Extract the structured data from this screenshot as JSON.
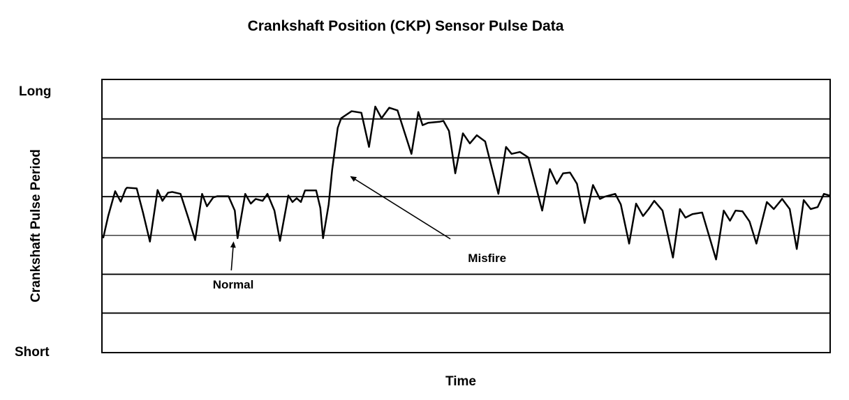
{
  "page": {
    "background": "#ffffff",
    "foreground": "#000000"
  },
  "chart_data": {
    "type": "line",
    "title": "Crankshaft Position (CKP) Sensor Pulse Data",
    "xlabel": "Time",
    "ylabel": "Crankshaft Pulse Period",
    "y_axis_top_label": "Long",
    "y_axis_bottom_label": "Short",
    "ylim": [
      0,
      7
    ],
    "xlim": [
      0,
      100
    ],
    "gridlines_y": [
      1,
      2,
      3,
      4,
      5,
      6
    ],
    "grid": true,
    "legend_position": "none",
    "line_color": "#000000",
    "background_color": "#ffffff",
    "x_units": "percent of time axis (no tick labels shown)",
    "y_units": "pulse period, qualitative scale Short(0) to Long(7)",
    "series": [
      {
        "name": "crankshaft-pulse-period",
        "points": [
          [
            0.1,
            2.95
          ],
          [
            0.77,
            3.5
          ],
          [
            1.72,
            4.14
          ],
          [
            2.49,
            3.87
          ],
          [
            3.16,
            4.19
          ],
          [
            3.35,
            4.23
          ],
          [
            4.69,
            4.21
          ],
          [
            5.55,
            3.59
          ],
          [
            6.51,
            2.84
          ],
          [
            7.56,
            4.17
          ],
          [
            8.23,
            3.89
          ],
          [
            9.0,
            4.1
          ],
          [
            9.57,
            4.12
          ],
          [
            10.72,
            4.07
          ],
          [
            11.77,
            3.46
          ],
          [
            12.73,
            2.88
          ],
          [
            13.68,
            4.07
          ],
          [
            14.35,
            3.75
          ],
          [
            15.22,
            3.98
          ],
          [
            15.79,
            4.01
          ],
          [
            17.32,
            4.01
          ],
          [
            18.18,
            3.64
          ],
          [
            18.56,
            2.93
          ],
          [
            19.62,
            4.07
          ],
          [
            20.38,
            3.82
          ],
          [
            21.05,
            3.94
          ],
          [
            22.01,
            3.89
          ],
          [
            22.68,
            4.07
          ],
          [
            23.64,
            3.64
          ],
          [
            24.4,
            2.86
          ],
          [
            25.55,
            4.03
          ],
          [
            26.12,
            3.86
          ],
          [
            26.7,
            3.96
          ],
          [
            27.27,
            3.86
          ],
          [
            27.85,
            4.16
          ],
          [
            29.38,
            4.16
          ],
          [
            29.95,
            3.71
          ],
          [
            30.33,
            2.93
          ],
          [
            31.1,
            3.8
          ],
          [
            31.58,
            4.69
          ],
          [
            32.34,
            5.77
          ],
          [
            32.82,
            6.02
          ],
          [
            34.26,
            6.2
          ],
          [
            35.6,
            6.16
          ],
          [
            36.65,
            5.28
          ],
          [
            37.51,
            6.32
          ],
          [
            38.37,
            6.02
          ],
          [
            39.43,
            6.29
          ],
          [
            40.57,
            6.22
          ],
          [
            42.49,
            5.1
          ],
          [
            43.44,
            6.18
          ],
          [
            44.02,
            5.84
          ],
          [
            44.78,
            5.9
          ],
          [
            46.41,
            5.93
          ],
          [
            46.89,
            5.95
          ],
          [
            47.66,
            5.69
          ],
          [
            48.52,
            4.6
          ],
          [
            49.57,
            5.63
          ],
          [
            50.53,
            5.37
          ],
          [
            51.48,
            5.58
          ],
          [
            52.63,
            5.42
          ],
          [
            54.45,
            4.07
          ],
          [
            55.5,
            5.28
          ],
          [
            56.27,
            5.1
          ],
          [
            57.42,
            5.15
          ],
          [
            58.56,
            5.01
          ],
          [
            60.48,
            3.64
          ],
          [
            61.53,
            4.71
          ],
          [
            62.49,
            4.33
          ],
          [
            63.35,
            4.6
          ],
          [
            64.31,
            4.62
          ],
          [
            65.26,
            4.33
          ],
          [
            66.32,
            3.32
          ],
          [
            67.46,
            4.3
          ],
          [
            68.42,
            3.94
          ],
          [
            69.09,
            4.0
          ],
          [
            70.53,
            4.07
          ],
          [
            71.29,
            3.8
          ],
          [
            72.44,
            2.79
          ],
          [
            73.4,
            3.82
          ],
          [
            74.35,
            3.5
          ],
          [
            75.12,
            3.68
          ],
          [
            75.89,
            3.89
          ],
          [
            77.03,
            3.64
          ],
          [
            78.47,
            2.43
          ],
          [
            79.43,
            3.68
          ],
          [
            80.19,
            3.46
          ],
          [
            81.15,
            3.55
          ],
          [
            82.49,
            3.59
          ],
          [
            84.4,
            2.38
          ],
          [
            85.45,
            3.64
          ],
          [
            86.32,
            3.38
          ],
          [
            87.08,
            3.64
          ],
          [
            88.04,
            3.62
          ],
          [
            89.0,
            3.36
          ],
          [
            89.95,
            2.79
          ],
          [
            91.39,
            3.86
          ],
          [
            92.34,
            3.68
          ],
          [
            93.49,
            3.94
          ],
          [
            94.54,
            3.68
          ],
          [
            95.5,
            2.65
          ],
          [
            96.46,
            3.91
          ],
          [
            97.42,
            3.68
          ],
          [
            98.37,
            3.73
          ],
          [
            99.23,
            4.07
          ],
          [
            100.0,
            4.03
          ]
        ]
      }
    ],
    "annotations": [
      {
        "label": "Normal",
        "label_pos": {
          "x": 17.9,
          "y": 1.78
        },
        "arrow_tail": {
          "x": 17.7,
          "y": 2.1
        },
        "arrow_tip": {
          "x": 18.0,
          "y": 2.81
        }
      },
      {
        "label": "Misfire",
        "label_pos": {
          "x": 52.7,
          "y": 2.45
        },
        "arrow_tail": {
          "x": 47.85,
          "y": 2.91
        },
        "arrow_tip": {
          "x": 34.2,
          "y": 4.51
        }
      }
    ]
  }
}
